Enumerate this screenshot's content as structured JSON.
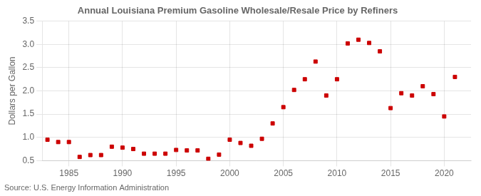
{
  "chart_data": {
    "type": "scatter",
    "title": "Annual Louisiana Premium Gasoline Wholesale/Resale Price by Refiners",
    "ylabel": "Dollars per Gallon",
    "annotations": [
      "Source: U.S. Energy Information Administration"
    ],
    "x": [
      1983,
      1984,
      1985,
      1986,
      1987,
      1988,
      1989,
      1990,
      1991,
      1992,
      1993,
      1994,
      1995,
      1996,
      1997,
      1998,
      1999,
      2000,
      2001,
      2002,
      2003,
      2004,
      2005,
      2006,
      2007,
      2008,
      2009,
      2010,
      2011,
      2012,
      2013,
      2014,
      2015,
      2016,
      2017,
      2018,
      2019,
      2020,
      2021
    ],
    "values": [
      0.95,
      0.9,
      0.9,
      0.58,
      0.62,
      0.62,
      0.8,
      0.78,
      0.75,
      0.65,
      0.65,
      0.65,
      0.73,
      0.72,
      0.72,
      0.54,
      0.63,
      0.95,
      0.88,
      0.82,
      0.97,
      1.3,
      1.65,
      2.02,
      2.25,
      2.63,
      1.9,
      2.25,
      3.02,
      3.1,
      3.03,
      2.85,
      1.63,
      1.95,
      1.9,
      2.1,
      1.93,
      1.45,
      2.3
    ],
    "color": "#cc0000",
    "marker": "square",
    "xlim": [
      1982.5,
      2022.5
    ],
    "ylim": [
      0.5,
      3.5
    ],
    "xticks": [
      1985,
      1990,
      1995,
      2000,
      2005,
      2010,
      2015,
      2020
    ],
    "yticks": [
      0.5,
      {
        "value": 1.0,
        "label": "1.0"
      },
      1.5,
      {
        "value": 2.0,
        "label": "2.0"
      },
      2.5,
      {
        "value": 3.0,
        "label": "3.0"
      },
      3.5
    ],
    "grid": true
  }
}
